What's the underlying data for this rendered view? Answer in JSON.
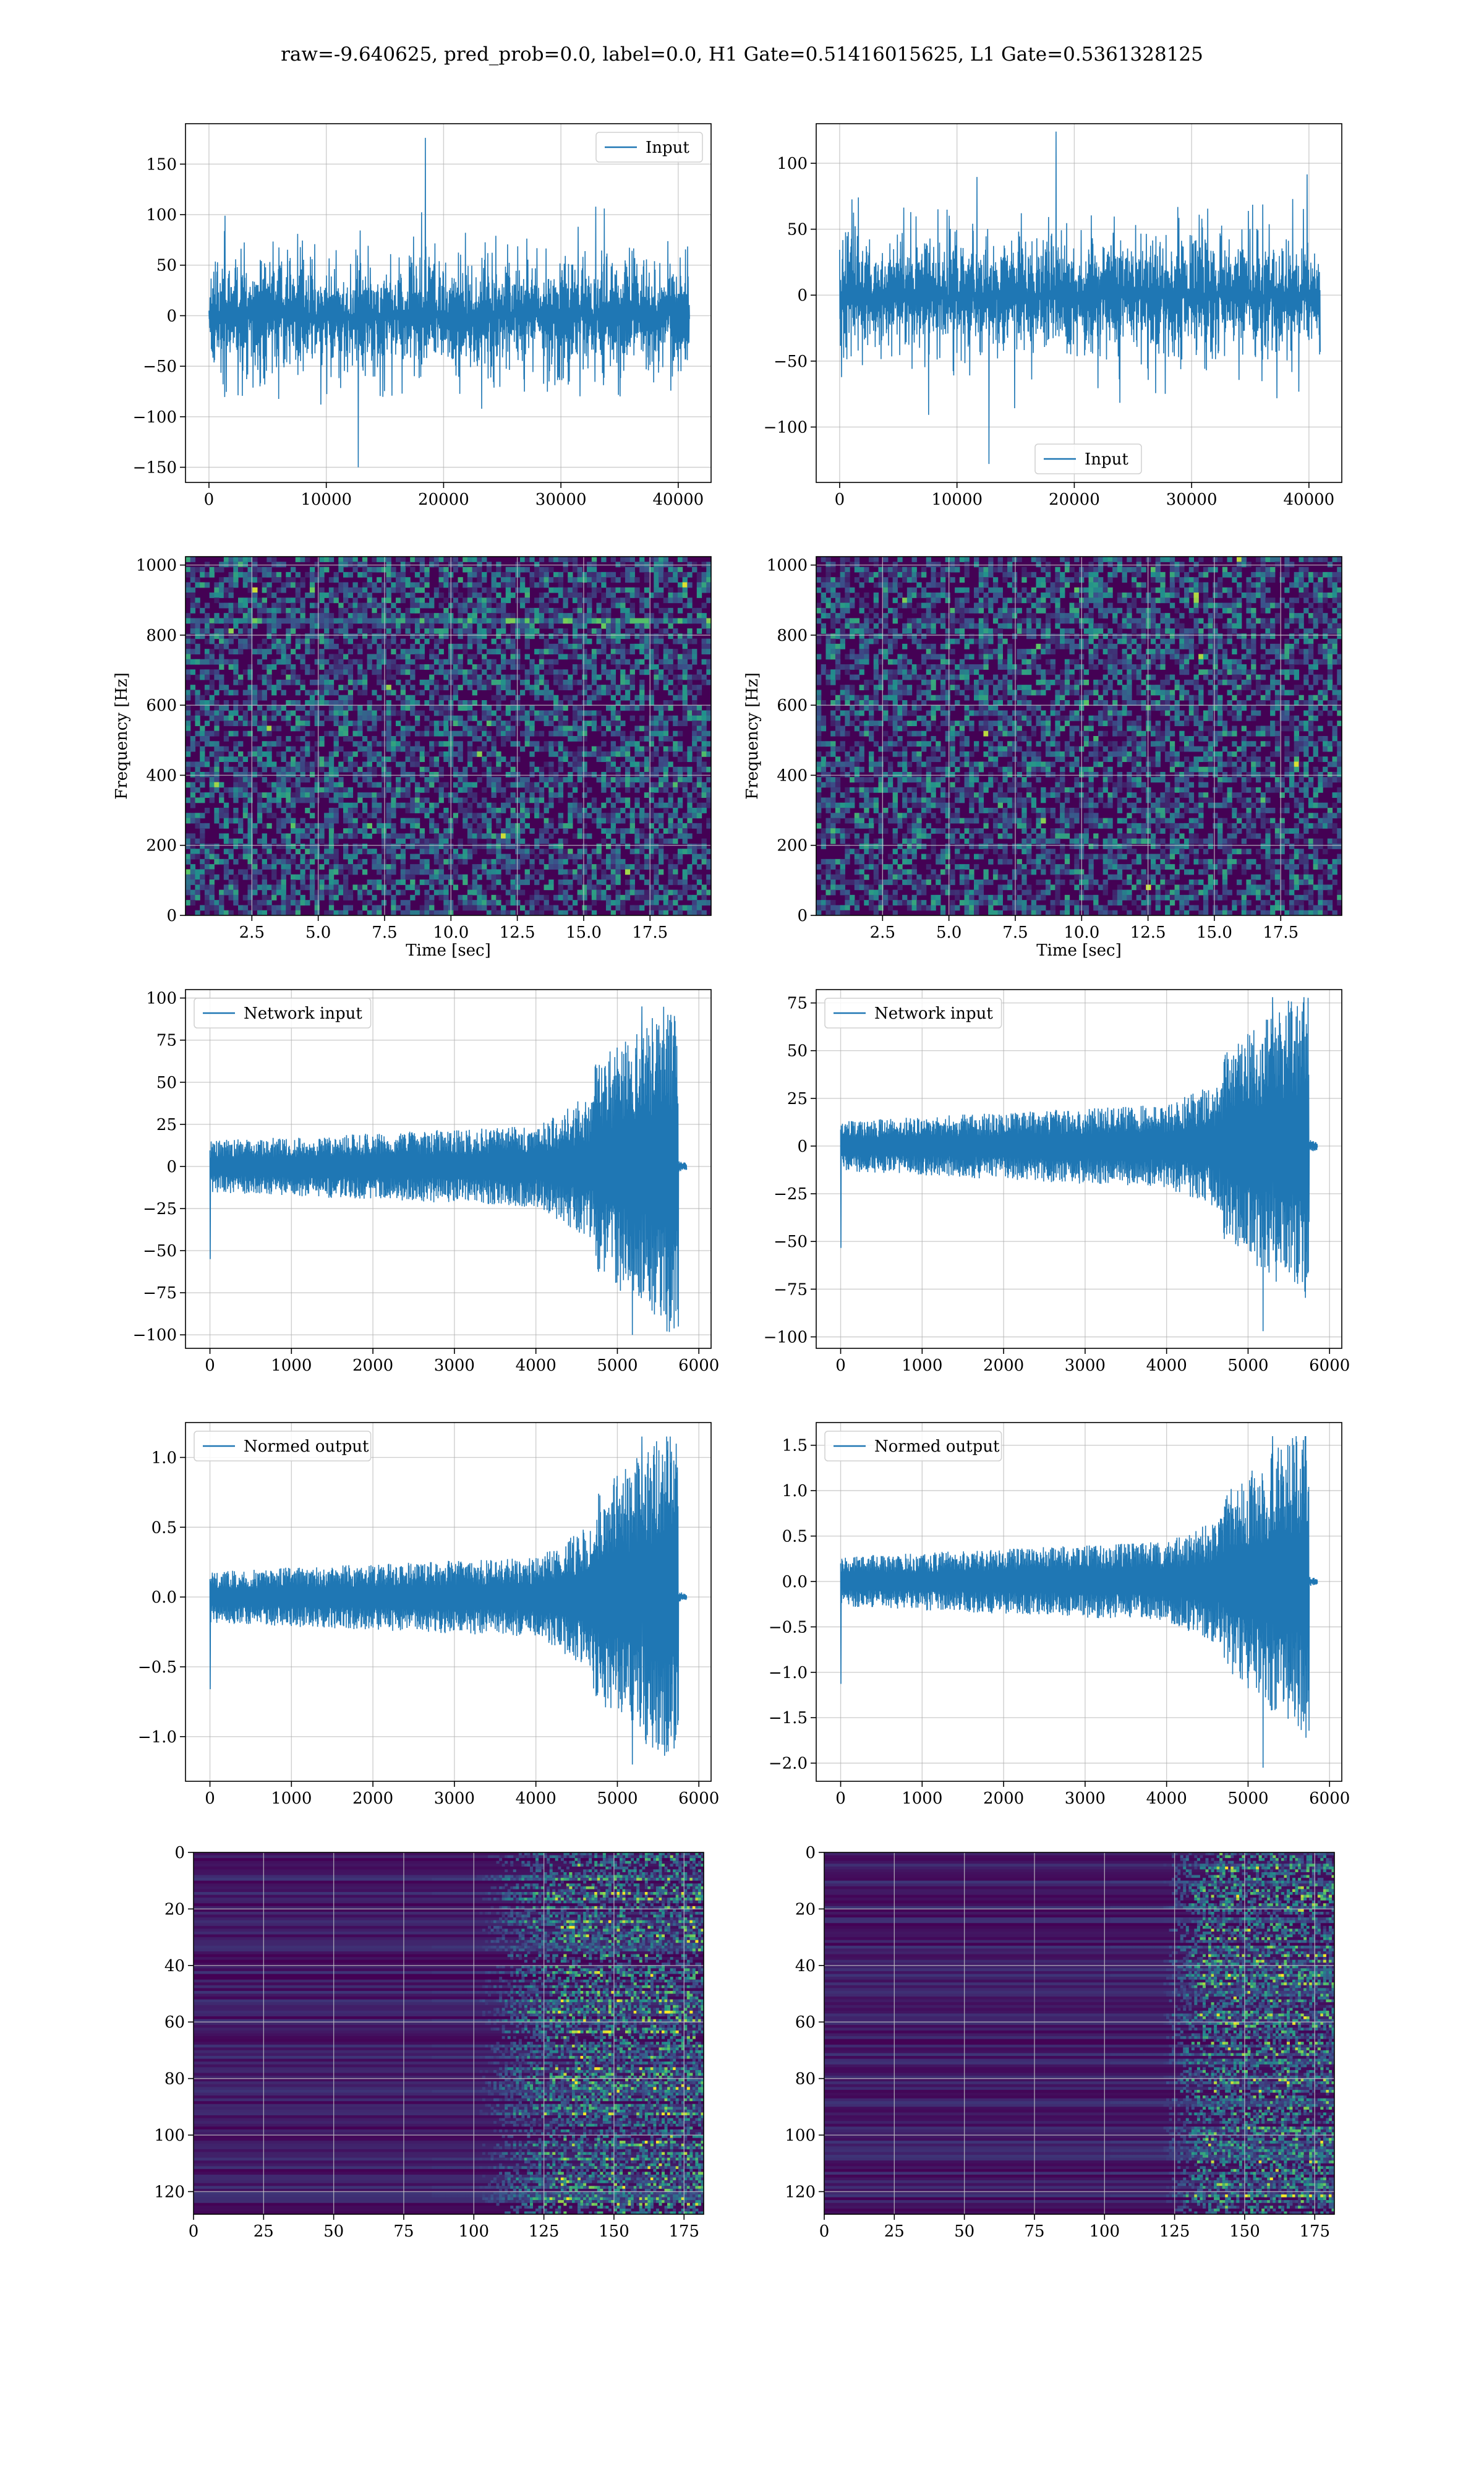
{
  "figure": {
    "title": "raw=-9.640625, pred_prob=0.0, label=0.0, H1 Gate=0.51416015625, L1 Gate=0.5361328125"
  },
  "colors": {
    "series": "#1f77b4",
    "grid": "#b0b0b0",
    "viridis_dark": "#440154",
    "viridis_mid": "#21918c",
    "viridis_bright": "#fde725"
  },
  "chart_data": [
    {
      "id": "h1-input",
      "type": "line",
      "legend": [
        "Input"
      ],
      "legend_loc": "upper right",
      "xlim": [
        -2000,
        42800
      ],
      "ylim": [
        -165,
        190
      ],
      "xticks": [
        0,
        10000,
        20000,
        30000,
        40000
      ],
      "yticks": [
        -150,
        -100,
        -50,
        0,
        50,
        100,
        150
      ],
      "xlabel": "",
      "ylabel": "",
      "grid": true,
      "series": [
        {
          "name": "Input",
          "x_range": [
            0,
            40960
          ],
          "envelope": "stationary noise",
          "typical_abs": 75,
          "max": 176,
          "min": -150
        }
      ]
    },
    {
      "id": "l1-input",
      "type": "line",
      "legend": [
        "Input"
      ],
      "legend_loc": "lower center",
      "xlim": [
        -2000,
        42800
      ],
      "ylim": [
        -142,
        130
      ],
      "xticks": [
        0,
        10000,
        20000,
        30000,
        40000
      ],
      "yticks": [
        -100,
        -50,
        0,
        50,
        100
      ],
      "xlabel": "",
      "ylabel": "",
      "grid": true,
      "series": [
        {
          "name": "Input",
          "x_range": [
            0,
            40960
          ],
          "envelope": "stationary noise",
          "typical_abs": 60,
          "max": 124,
          "min": -128
        }
      ]
    },
    {
      "id": "h1-spectrogram",
      "type": "heatmap",
      "colormap": "viridis",
      "xlim": [
        0,
        19.8
      ],
      "ylim": [
        0,
        1024
      ],
      "xticks": [
        2.5,
        5.0,
        7.5,
        10.0,
        12.5,
        15.0,
        17.5
      ],
      "yticks": [
        0,
        200,
        400,
        600,
        800,
        1000
      ],
      "xlabel": "Time [sec]",
      "ylabel": "Frequency [Hz]",
      "grid": true,
      "features": {
        "bright_line_hz": 840,
        "dark_lines_hz": [
          1000,
          500
        ]
      }
    },
    {
      "id": "l1-spectrogram",
      "type": "heatmap",
      "colormap": "viridis",
      "xlim": [
        0,
        19.8
      ],
      "ylim": [
        0,
        1024
      ],
      "xticks": [
        2.5,
        5.0,
        7.5,
        10.0,
        12.5,
        15.0,
        17.5
      ],
      "yticks": [
        0,
        200,
        400,
        600,
        800,
        1000
      ],
      "xlabel": "Time [sec]",
      "ylabel": "Frequency [Hz]",
      "grid": true,
      "features": {
        "bright_line_hz": null,
        "dark_lines_hz": [
          1000,
          500
        ]
      }
    },
    {
      "id": "h1-network-input",
      "type": "line",
      "legend": [
        "Network input"
      ],
      "legend_loc": "upper left",
      "xlim": [
        -300,
        6150
      ],
      "ylim": [
        -108,
        105
      ],
      "xticks": [
        0,
        1000,
        2000,
        3000,
        4000,
        5000,
        6000
      ],
      "yticks": [
        -100,
        -75,
        -50,
        -25,
        0,
        25,
        50,
        75,
        100
      ],
      "xlabel": "",
      "ylabel": "",
      "grid": true,
      "series": [
        {
          "name": "Network input",
          "x_range": [
            0,
            5850
          ],
          "segments": [
            {
              "x": [
                0,
                4000
              ],
              "abs_start": 14,
              "abs_end": 22
            },
            {
              "x": [
                4000,
                4700
              ],
              "abs_start": 22,
              "abs_end": 40
            },
            {
              "x": [
                4700,
                5750
              ],
              "abs_start": 55,
              "abs_end": 95
            },
            {
              "x": [
                5750,
                5850
              ],
              "abs_start": 3,
              "abs_end": 2
            }
          ],
          "max": 95,
          "min": -100
        }
      ]
    },
    {
      "id": "l1-network-input",
      "type": "line",
      "legend": [
        "Network input"
      ],
      "legend_loc": "upper left",
      "xlim": [
        -300,
        6150
      ],
      "ylim": [
        -106,
        82
      ],
      "xticks": [
        0,
        1000,
        2000,
        3000,
        4000,
        5000,
        6000
      ],
      "yticks": [
        -100,
        -75,
        -50,
        -25,
        0,
        25,
        50,
        75
      ],
      "xlabel": "",
      "ylabel": "",
      "grid": true,
      "series": [
        {
          "name": "Network input",
          "x_range": [
            0,
            5850
          ],
          "segments": [
            {
              "x": [
                0,
                4000
              ],
              "abs_start": 12,
              "abs_end": 20
            },
            {
              "x": [
                4000,
                4700
              ],
              "abs_start": 20,
              "abs_end": 32
            },
            {
              "x": [
                4700,
                5750
              ],
              "abs_start": 45,
              "abs_end": 78
            },
            {
              "x": [
                5750,
                5850
              ],
              "abs_start": 3,
              "abs_end": 2
            }
          ],
          "max": 78,
          "min": -97
        }
      ]
    },
    {
      "id": "h1-normed-output",
      "type": "line",
      "legend": [
        "Normed output"
      ],
      "legend_loc": "upper left",
      "xlim": [
        -300,
        6150
      ],
      "ylim": [
        -1.32,
        1.25
      ],
      "xticks": [
        0,
        1000,
        2000,
        3000,
        4000,
        5000,
        6000
      ],
      "yticks": [
        -1.0,
        -0.5,
        0.0,
        0.5,
        1.0
      ],
      "xlabel": "",
      "ylabel": "",
      "grid": true,
      "series": [
        {
          "name": "Normed output",
          "x_range": [
            0,
            5850
          ],
          "segments": [
            {
              "x": [
                0,
                4000
              ],
              "abs_start": 0.17,
              "abs_end": 0.26
            },
            {
              "x": [
                4000,
                4700
              ],
              "abs_start": 0.26,
              "abs_end": 0.48
            },
            {
              "x": [
                4700,
                5750
              ],
              "abs_start": 0.65,
              "abs_end": 1.15
            },
            {
              "x": [
                5750,
                5850
              ],
              "abs_start": 0.04,
              "abs_end": 0.02
            }
          ],
          "max": 1.15,
          "min": -1.2
        }
      ]
    },
    {
      "id": "l1-normed-output",
      "type": "line",
      "legend": [
        "Normed output"
      ],
      "legend_loc": "upper left",
      "xlim": [
        -300,
        6150
      ],
      "ylim": [
        -2.2,
        1.75
      ],
      "xticks": [
        0,
        1000,
        2000,
        3000,
        4000,
        5000,
        6000
      ],
      "yticks": [
        -2.0,
        -1.5,
        -1.0,
        -0.5,
        0.0,
        0.5,
        1.0,
        1.5
      ],
      "xlabel": "",
      "ylabel": "",
      "grid": true,
      "series": [
        {
          "name": "Normed output",
          "x_range": [
            0,
            5850
          ],
          "segments": [
            {
              "x": [
                0,
                4000
              ],
              "abs_start": 0.25,
              "abs_end": 0.4
            },
            {
              "x": [
                4000,
                4700
              ],
              "abs_start": 0.4,
              "abs_end": 0.65
            },
            {
              "x": [
                4700,
                5750
              ],
              "abs_start": 0.9,
              "abs_end": 1.6
            },
            {
              "x": [
                5750,
                5850
              ],
              "abs_start": 0.05,
              "abs_end": 0.03
            }
          ],
          "max": 1.6,
          "min": -2.05
        }
      ]
    },
    {
      "id": "h1-feature-map",
      "type": "heatmap",
      "colormap": "viridis",
      "xlim": [
        0,
        182
      ],
      "ylim": [
        128,
        0
      ],
      "xticks": [
        0,
        25,
        50,
        75,
        100,
        125,
        150,
        175
      ],
      "yticks": [
        0,
        20,
        40,
        60,
        80,
        100,
        120
      ],
      "xlabel": "",
      "ylabel": "",
      "grid": true,
      "features": {
        "activity_starts_at_x": 100,
        "dense_activity_from_x": 130
      }
    },
    {
      "id": "l1-feature-map",
      "type": "heatmap",
      "colormap": "viridis",
      "xlim": [
        0,
        182
      ],
      "ylim": [
        128,
        0
      ],
      "xticks": [
        0,
        25,
        50,
        75,
        100,
        125,
        150,
        175
      ],
      "yticks": [
        0,
        20,
        40,
        60,
        80,
        100,
        120
      ],
      "xlabel": "",
      "ylabel": "",
      "grid": true,
      "features": {
        "activity_starts_at_x": 120,
        "dense_activity_from_x": 135
      }
    }
  ]
}
